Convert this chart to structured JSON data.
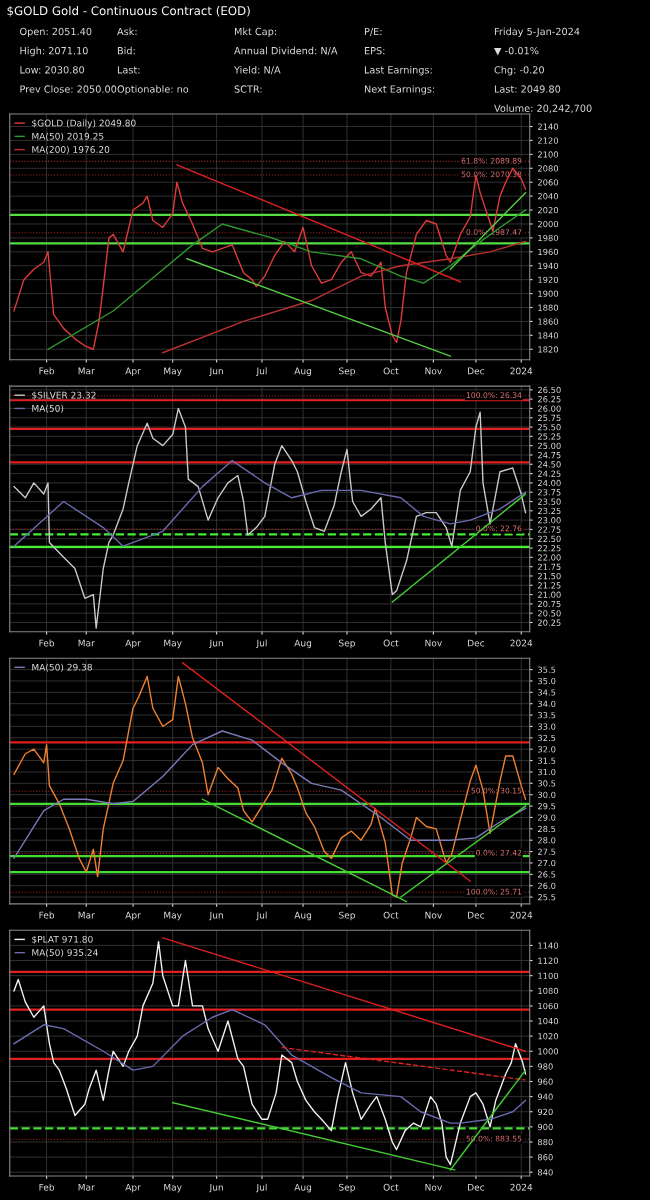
{
  "chart_data": [
    {
      "type": "line",
      "title": "$GOLD Gold - Continuous Contract (EOD)",
      "annotations": [
        "Open: 2051.40",
        "High: 2071.10",
        "Low: 2030.80",
        "Prev Close: 2050.00",
        "Ask:",
        "Bid:",
        "Last:",
        "Optionable: no",
        "Mkt Cap:",
        "Annual Dividend: N/A",
        "Yield: N/A",
        "SCTR:",
        "P/E:",
        "EPS:",
        "Last Earnings:",
        "Next Earnings:",
        "Friday 5-Jan-2024",
        "▼ -0.01%",
        "Chg: -0.20",
        "Last: 2049.80",
        "Volume: 20,242,700"
      ],
      "xlim": [
        "2023-01-06",
        "2024-01-08"
      ],
      "ylim": [
        1805,
        2158
      ],
      "yticks": [
        1820,
        1840,
        1860,
        1880,
        1900,
        1920,
        1940,
        1960,
        1980,
        2000,
        2020,
        2040,
        2060,
        2080,
        2100,
        2120,
        2140
      ],
      "xticks": [
        {
          "value": "2023-02-01",
          "label": "Feb"
        },
        {
          "value": "2023-03-01",
          "label": "Mar"
        },
        {
          "value": "2023-04-03",
          "label": "Apr"
        },
        {
          "value": "2023-05-01",
          "label": "May"
        },
        {
          "value": "2023-06-01",
          "label": "Jun"
        },
        {
          "value": "2023-07-03",
          "label": "Jul"
        },
        {
          "value": "2023-08-01",
          "label": "Aug"
        },
        {
          "value": "2023-09-01",
          "label": "Sep"
        },
        {
          "value": "2023-10-02",
          "label": "Oct"
        },
        {
          "value": "2023-11-01",
          "label": "Nov"
        },
        {
          "value": "2023-12-01",
          "label": "Dec"
        },
        {
          "value": "2024-01-02",
          "label": "2024"
        }
      ],
      "grid": true,
      "legend": "top left",
      "ref_lines": [
        {
          "axis": "y",
          "value": 2013,
          "color": "#55dd44"
        },
        {
          "axis": "y",
          "value": 1972,
          "color": "#55dd44"
        },
        {
          "axis": "y",
          "value": 2089.89,
          "label": "61.8%: 2089.89",
          "color": "#a02020",
          "line_style": "dotted"
        },
        {
          "axis": "y",
          "value": 2070.38,
          "label": "50.0%: 2070.38",
          "color": "#a02020",
          "line_style": "dotted"
        },
        {
          "axis": "y",
          "value": 1987.47,
          "label": "0.0%: 1987.47",
          "color": "#a02020",
          "line_style": "dotted"
        }
      ],
      "series": [
        {
          "name": "$GOLD (Daily) 2049.80",
          "color": "#e03a3a",
          "x": [
            "2023-01-09",
            "2023-01-16",
            "2023-01-23",
            "2023-01-30",
            "2023-02-02",
            "2023-02-06",
            "2023-02-13",
            "2023-02-21",
            "2023-02-28",
            "2023-03-06",
            "2023-03-10",
            "2023-03-13",
            "2023-03-17",
            "2023-03-20",
            "2023-03-27",
            "2023-04-03",
            "2023-04-10",
            "2023-04-13",
            "2023-04-17",
            "2023-04-24",
            "2023-05-01",
            "2023-05-04",
            "2023-05-08",
            "2023-05-15",
            "2023-05-22",
            "2023-05-29",
            "2023-06-05",
            "2023-06-12",
            "2023-06-20",
            "2023-06-26",
            "2023-06-29",
            "2023-07-05",
            "2023-07-12",
            "2023-07-19",
            "2023-07-26",
            "2023-08-01",
            "2023-08-07",
            "2023-08-14",
            "2023-08-21",
            "2023-08-28",
            "2023-09-04",
            "2023-09-11",
            "2023-09-18",
            "2023-09-25",
            "2023-09-28",
            "2023-10-03",
            "2023-10-06",
            "2023-10-09",
            "2023-10-13",
            "2023-10-20",
            "2023-10-27",
            "2023-11-03",
            "2023-11-10",
            "2023-11-13",
            "2023-11-20",
            "2023-11-27",
            "2023-12-01",
            "2023-12-04",
            "2023-12-08",
            "2023-12-13",
            "2023-12-18",
            "2023-12-22",
            "2023-12-27",
            "2024-01-02",
            "2024-01-05"
          ],
          "values": [
            1875,
            1920,
            1935,
            1945,
            1960,
            1870,
            1850,
            1835,
            1825,
            1820,
            1860,
            1910,
            1980,
            1985,
            1960,
            2020,
            2030,
            2040,
            2005,
            1995,
            2015,
            2060,
            2030,
            2000,
            1965,
            1960,
            1965,
            1970,
            1930,
            1920,
            1910,
            1925,
            1955,
            1975,
            1960,
            1995,
            1940,
            1915,
            1920,
            1945,
            1960,
            1930,
            1925,
            1945,
            1880,
            1840,
            1830,
            1860,
            1930,
            1985,
            2005,
            2000,
            1955,
            1945,
            1985,
            2010,
            2070,
            2045,
            2020,
            1990,
            2040,
            2060,
            2080,
            2065,
            2050
          ]
        },
        {
          "name": "MA(50) 2019.25",
          "color": "#2e9a2e",
          "x": [
            "2023-02-02",
            "2023-03-20",
            "2023-05-15",
            "2023-06-05",
            "2023-07-10",
            "2023-08-07",
            "2023-09-11",
            "2023-10-09",
            "2023-10-25",
            "2023-11-13",
            "2023-12-01",
            "2023-12-18",
            "2024-01-05"
          ],
          "values": [
            1820,
            1875,
            1970,
            2000,
            1980,
            1960,
            1950,
            1925,
            1915,
            1940,
            1970,
            1995,
            2020
          ]
        },
        {
          "name": "MA(200) 1976.20",
          "color": "#b83030",
          "x": [
            "2023-04-24",
            "2023-06-20",
            "2023-08-07",
            "2023-09-11",
            "2023-10-09",
            "2023-11-13",
            "2023-12-11",
            "2024-01-05"
          ],
          "values": [
            1815,
            1860,
            1890,
            1925,
            1940,
            1950,
            1960,
            1975
          ]
        },
        {
          "color": "#e02020",
          "x": [
            "2023-05-04",
            "2023-11-20"
          ],
          "values": [
            2085,
            1917
          ]
        },
        {
          "color": "#55cc44",
          "x": [
            "2023-05-11",
            "2023-11-13"
          ],
          "values": [
            1950,
            1810
          ]
        },
        {
          "color": "#55cc44",
          "x": [
            "2023-11-13",
            "2024-01-05"
          ],
          "values": [
            1935,
            2045
          ]
        }
      ]
    },
    {
      "type": "line",
      "xlim": [
        "2023-01-06",
        "2024-01-08"
      ],
      "ylim": [
        20.0,
        26.6
      ],
      "yticks": [
        {
          "value": 20.25,
          "label": "20.25"
        },
        {
          "value": 20.5,
          "label": "20.50"
        },
        {
          "value": 20.75,
          "label": "20.75"
        },
        {
          "value": 21.0,
          "label": "21.00"
        },
        {
          "value": 21.25,
          "label": "21.25"
        },
        {
          "value": 21.5,
          "label": "21.50"
        },
        {
          "value": 21.75,
          "label": "21.75"
        },
        {
          "value": 22.0,
          "label": "22.00"
        },
        {
          "value": 22.25,
          "label": "22.25"
        },
        {
          "value": 22.5,
          "label": "22.50"
        },
        {
          "value": 22.75,
          "label": "22.75"
        },
        {
          "value": 23.0,
          "label": "23.00"
        },
        {
          "value": 23.25,
          "label": "23.25"
        },
        {
          "value": 23.5,
          "label": "23.50"
        },
        {
          "value": 23.75,
          "label": "23.75"
        },
        {
          "value": 24.0,
          "label": "24.00"
        },
        {
          "value": 24.25,
          "label": "24.25"
        },
        {
          "value": 24.5,
          "label": "24.50"
        },
        {
          "value": 24.75,
          "label": "24.75"
        },
        {
          "value": 25.0,
          "label": "25.00"
        },
        {
          "value": 25.25,
          "label": "25.25"
        },
        {
          "value": 25.5,
          "label": "25.50"
        },
        {
          "value": 25.75,
          "label": "25.75"
        },
        {
          "value": 26.0,
          "label": "26.00"
        },
        {
          "value": 26.25,
          "label": "26.25"
        },
        {
          "value": 26.5,
          "label": "26.50"
        }
      ],
      "xticks": [
        {
          "value": "2023-02-01",
          "label": "Feb"
        },
        {
          "value": "2023-03-01",
          "label": "Mar"
        },
        {
          "value": "2023-04-03",
          "label": "Apr"
        },
        {
          "value": "2023-05-01",
          "label": "May"
        },
        {
          "value": "2023-06-01",
          "label": "Jun"
        },
        {
          "value": "2023-07-03",
          "label": "Jul"
        },
        {
          "value": "2023-08-01",
          "label": "Aug"
        },
        {
          "value": "2023-09-01",
          "label": "Sep"
        },
        {
          "value": "2023-10-02",
          "label": "Oct"
        },
        {
          "value": "2023-11-01",
          "label": "Nov"
        },
        {
          "value": "2023-12-01",
          "label": "Dec"
        },
        {
          "value": "2024-01-02",
          "label": "2024"
        }
      ],
      "grid": true,
      "legend": "top left",
      "ref_lines": [
        {
          "axis": "y",
          "value": 26.22,
          "color": "#e02020"
        },
        {
          "axis": "y",
          "value": 25.45,
          "color": "#e02020"
        },
        {
          "axis": "y",
          "value": 24.55,
          "color": "#e02020"
        },
        {
          "axis": "y",
          "value": 22.62,
          "color": "#44ee33",
          "line_style": "dashed"
        },
        {
          "axis": "y",
          "value": 22.28,
          "color": "#44ee33"
        },
        {
          "axis": "y",
          "value": 26.34,
          "label": "100.0%: 26.34",
          "color": "#a02020",
          "line_style": "dotted"
        },
        {
          "axis": "y",
          "value": 22.76,
          "label": "0.0%: 22.76",
          "color": "#a02020",
          "line_style": "dotted"
        }
      ],
      "series": [
        {
          "name": "$SILVER 23.32",
          "color": "#c8c8c8",
          "x": [
            "2023-01-09",
            "2023-01-17",
            "2023-01-23",
            "2023-01-30",
            "2023-02-02",
            "2023-02-03",
            "2023-02-13",
            "2023-02-21",
            "2023-02-28",
            "2023-03-06",
            "2023-03-08",
            "2023-03-13",
            "2023-03-17",
            "2023-03-20",
            "2023-03-27",
            "2023-03-31",
            "2023-04-06",
            "2023-04-13",
            "2023-04-17",
            "2023-04-24",
            "2023-05-01",
            "2023-05-05",
            "2023-05-10",
            "2023-05-12",
            "2023-05-19",
            "2023-05-26",
            "2023-06-02",
            "2023-06-09",
            "2023-06-16",
            "2023-06-20",
            "2023-06-23",
            "2023-06-29",
            "2023-07-05",
            "2023-07-12",
            "2023-07-17",
            "2023-07-24",
            "2023-07-28",
            "2023-08-03",
            "2023-08-09",
            "2023-08-16",
            "2023-08-23",
            "2023-08-28",
            "2023-09-01",
            "2023-09-05",
            "2023-09-11",
            "2023-09-18",
            "2023-09-25",
            "2023-09-28",
            "2023-10-03",
            "2023-10-06",
            "2023-10-13",
            "2023-10-20",
            "2023-10-27",
            "2023-11-03",
            "2023-11-10",
            "2023-11-14",
            "2023-11-20",
            "2023-11-27",
            "2023-12-01",
            "2023-12-04",
            "2023-12-06",
            "2023-12-11",
            "2023-12-18",
            "2023-12-27",
            "2024-01-02",
            "2024-01-05"
          ],
          "values": [
            23.9,
            23.6,
            24.0,
            23.7,
            24.0,
            22.4,
            22.0,
            21.7,
            20.9,
            21.0,
            20.1,
            21.7,
            22.4,
            22.6,
            23.3,
            24.0,
            25.0,
            25.6,
            25.2,
            25.0,
            25.3,
            26.0,
            25.5,
            24.1,
            23.9,
            23.0,
            23.6,
            24.0,
            24.2,
            23.5,
            22.6,
            22.8,
            23.1,
            24.5,
            25.0,
            24.6,
            24.3,
            23.5,
            22.8,
            22.7,
            23.4,
            24.3,
            24.9,
            23.5,
            23.1,
            23.3,
            23.6,
            22.4,
            21.0,
            21.1,
            21.9,
            23.1,
            23.2,
            23.2,
            22.8,
            22.3,
            23.8,
            24.3,
            25.5,
            25.9,
            24.0,
            22.9,
            24.3,
            24.4,
            23.7,
            23.2
          ]
        },
        {
          "name": "MA(50)",
          "color": "#6a6ab0",
          "x": [
            "2023-01-09",
            "2023-02-13",
            "2023-03-13",
            "2023-03-27",
            "2023-04-24",
            "2023-05-22",
            "2023-06-12",
            "2023-07-05",
            "2023-07-24",
            "2023-08-14",
            "2023-09-11",
            "2023-10-09",
            "2023-10-25",
            "2023-11-13",
            "2023-11-27",
            "2023-12-18",
            "2024-01-05"
          ],
          "values": [
            22.3,
            23.5,
            22.8,
            22.3,
            22.7,
            23.9,
            24.6,
            24.0,
            23.6,
            23.8,
            23.8,
            23.6,
            23.1,
            22.9,
            23.0,
            23.3,
            23.75
          ]
        },
        {
          "color": "#44cc33",
          "x": [
            "2023-10-03",
            "2024-01-05"
          ],
          "values": [
            20.8,
            23.7
          ]
        }
      ]
    },
    {
      "type": "line",
      "xlim": [
        "2023-01-06",
        "2024-01-08"
      ],
      "ylim": [
        25.2,
        36.0
      ],
      "yticks": [
        {
          "value": 25.5,
          "label": "25.5"
        },
        {
          "value": 26.0,
          "label": "26.0"
        },
        {
          "value": 26.5,
          "label": "26.5"
        },
        {
          "value": 27.0,
          "label": "27.0"
        },
        {
          "value": 27.5,
          "label": "27.5"
        },
        {
          "value": 28.0,
          "label": "28.0"
        },
        {
          "value": 28.5,
          "label": "28.5"
        },
        {
          "value": 29.0,
          "label": "29.0"
        },
        {
          "value": 29.5,
          "label": "29.5"
        },
        {
          "value": 30.0,
          "label": "30.0"
        },
        {
          "value": 30.5,
          "label": "30.5"
        },
        {
          "value": 31.0,
          "label": "31.0"
        },
        {
          "value": 31.5,
          "label": "31.5"
        },
        {
          "value": 32.0,
          "label": "32.0"
        },
        {
          "value": 32.5,
          "label": "32.5"
        },
        {
          "value": 33.0,
          "label": "33.0"
        },
        {
          "value": 33.5,
          "label": "33.5"
        },
        {
          "value": 34.0,
          "label": "34.0"
        },
        {
          "value": 34.5,
          "label": "34.5"
        },
        {
          "value": 35.0,
          "label": "35.0"
        },
        {
          "value": 35.5,
          "label": "35.5"
        }
      ],
      "xticks": [
        {
          "value": "2023-02-01",
          "label": "Feb"
        },
        {
          "value": "2023-03-01",
          "label": "Mar"
        },
        {
          "value": "2023-04-03",
          "label": "Apr"
        },
        {
          "value": "2023-05-01",
          "label": "May"
        },
        {
          "value": "2023-06-01",
          "label": "Jun"
        },
        {
          "value": "2023-07-03",
          "label": "Jul"
        },
        {
          "value": "2023-08-01",
          "label": "Aug"
        },
        {
          "value": "2023-09-01",
          "label": "Sep"
        },
        {
          "value": "2023-10-02",
          "label": "Oct"
        },
        {
          "value": "2023-11-01",
          "label": "Nov"
        },
        {
          "value": "2023-12-01",
          "label": "Dec"
        },
        {
          "value": "2024-01-02",
          "label": "2024"
        }
      ],
      "grid": true,
      "legend": "top left",
      "ref_lines": [
        {
          "axis": "y",
          "value": 32.3,
          "color": "#e02020"
        },
        {
          "axis": "y",
          "value": 29.6,
          "color": "#44dd33"
        },
        {
          "axis": "y",
          "value": 27.3,
          "color": "#44dd33"
        },
        {
          "axis": "y",
          "value": 26.6,
          "color": "#44dd33"
        },
        {
          "axis": "y",
          "value": 30.15,
          "label": "50.0%: 30.15",
          "color": "#a02020",
          "line_style": "dotted"
        },
        {
          "axis": "y",
          "value": 27.42,
          "label": "0.0%: 27.42",
          "color": "#a02020",
          "line_style": "dotted"
        },
        {
          "axis": "y",
          "value": 25.71,
          "label": "100.0%: 25.71",
          "color": "#a02020",
          "line_style": "dotted"
        }
      ],
      "series": [
        {
          "color": "#f08030",
          "x": [
            "2023-01-09",
            "2023-01-17",
            "2023-01-23",
            "2023-01-30",
            "2023-02-01",
            "2023-02-03",
            "2023-02-10",
            "2023-02-17",
            "2023-02-24",
            "2023-03-01",
            "2023-03-06",
            "2023-03-09",
            "2023-03-13",
            "2023-03-20",
            "2023-03-27",
            "2023-04-03",
            "2023-04-07",
            "2023-04-13",
            "2023-04-17",
            "2023-04-24",
            "2023-05-01",
            "2023-05-05",
            "2023-05-10",
            "2023-05-15",
            "2023-05-22",
            "2023-05-26",
            "2023-06-02",
            "2023-06-09",
            "2023-06-16",
            "2023-06-20",
            "2023-06-26",
            "2023-07-03",
            "2023-07-10",
            "2023-07-17",
            "2023-07-24",
            "2023-07-28",
            "2023-08-03",
            "2023-08-09",
            "2023-08-16",
            "2023-08-21",
            "2023-08-28",
            "2023-09-04",
            "2023-09-11",
            "2023-09-18",
            "2023-09-21",
            "2023-09-28",
            "2023-10-03",
            "2023-10-06",
            "2023-10-10",
            "2023-10-16",
            "2023-10-20",
            "2023-10-27",
            "2023-11-03",
            "2023-11-10",
            "2023-11-14",
            "2023-11-20",
            "2023-11-27",
            "2023-12-01",
            "2023-12-06",
            "2023-12-11",
            "2023-12-18",
            "2023-12-22",
            "2023-12-27",
            "2024-01-02",
            "2024-01-05"
          ],
          "values": [
            30.9,
            31.8,
            32.0,
            31.4,
            32.2,
            30.4,
            29.6,
            28.5,
            27.2,
            26.6,
            27.6,
            26.4,
            28.5,
            30.5,
            31.5,
            33.8,
            34.3,
            35.2,
            33.8,
            33.0,
            33.3,
            35.2,
            34.0,
            32.5,
            31.4,
            30.0,
            31.2,
            30.7,
            30.3,
            29.3,
            28.8,
            29.5,
            30.2,
            31.6,
            30.9,
            30.3,
            29.2,
            28.6,
            27.5,
            27.2,
            28.1,
            28.4,
            28.0,
            28.7,
            29.4,
            27.9,
            25.6,
            25.5,
            27.0,
            28.1,
            29.0,
            28.6,
            28.5,
            27.0,
            27.4,
            28.9,
            30.6,
            31.3,
            30.2,
            28.3,
            30.6,
            31.7,
            31.7,
            30.4,
            29.8
          ]
        },
        {
          "name": "MA(50) 29.38",
          "color": "#7a7ab8",
          "x": [
            "2023-01-09",
            "2023-01-30",
            "2023-02-13",
            "2023-03-01",
            "2023-03-20",
            "2023-04-03",
            "2023-04-24",
            "2023-05-15",
            "2023-06-05",
            "2023-06-26",
            "2023-07-17",
            "2023-08-07",
            "2023-08-28",
            "2023-09-25",
            "2023-10-16",
            "2023-11-13",
            "2023-12-01",
            "2023-12-18",
            "2024-01-05"
          ],
          "values": [
            27.2,
            29.3,
            29.8,
            29.8,
            29.6,
            29.7,
            30.8,
            32.2,
            32.8,
            32.4,
            31.4,
            30.5,
            30.2,
            29.0,
            28.0,
            28.0,
            28.1,
            28.8,
            29.4
          ]
        },
        {
          "color": "#e02020",
          "x": [
            "2023-05-08",
            "2023-11-27"
          ],
          "values": [
            35.8,
            26.2
          ]
        },
        {
          "color": "#44cc33",
          "x": [
            "2023-05-22",
            "2023-10-13"
          ],
          "values": [
            29.8,
            25.3
          ]
        },
        {
          "color": "#44cc33",
          "x": [
            "2023-10-09",
            "2024-01-05"
          ],
          "values": [
            25.5,
            29.5
          ]
        }
      ]
    },
    {
      "type": "line",
      "xlim": [
        "2023-01-06",
        "2024-01-08"
      ],
      "ylim": [
        835,
        1160
      ],
      "yticks": [
        840,
        860,
        880,
        900,
        920,
        940,
        960,
        980,
        1000,
        1020,
        1040,
        1060,
        1080,
        1100,
        1120,
        1140
      ],
      "xticks": [
        {
          "value": "2023-02-01",
          "label": "Feb"
        },
        {
          "value": "2023-03-01",
          "label": "Mar"
        },
        {
          "value": "2023-04-03",
          "label": "Apr"
        },
        {
          "value": "2023-05-01",
          "label": "May"
        },
        {
          "value": "2023-06-01",
          "label": "Jun"
        },
        {
          "value": "2023-07-03",
          "label": "Jul"
        },
        {
          "value": "2023-08-01",
          "label": "Aug"
        },
        {
          "value": "2023-09-01",
          "label": "Sep"
        },
        {
          "value": "2023-10-02",
          "label": "Oct"
        },
        {
          "value": "2023-11-01",
          "label": "Nov"
        },
        {
          "value": "2023-12-01",
          "label": "Dec"
        },
        {
          "value": "2024-01-02",
          "label": "2024"
        }
      ],
      "grid": true,
      "legend": "top left",
      "ref_lines": [
        {
          "axis": "y",
          "value": 1105,
          "color": "#e02020"
        },
        {
          "axis": "y",
          "value": 1055,
          "color": "#e02020"
        },
        {
          "axis": "y",
          "value": 990,
          "color": "#e02020"
        },
        {
          "axis": "y",
          "value": 898,
          "color": "#44dd33",
          "line_style": "dashed"
        },
        {
          "axis": "y",
          "value": 883.55,
          "label": "50.0%: 883.55",
          "color": "#a02020",
          "line_style": "dotted"
        }
      ],
      "series": [
        {
          "name": "$PLAT 971.80",
          "color": "#f0f0f0",
          "x": [
            "2023-01-09",
            "2023-01-12",
            "2023-01-17",
            "2023-01-23",
            "2023-01-30",
            "2023-02-03",
            "2023-02-06",
            "2023-02-10",
            "2023-02-15",
            "2023-02-21",
            "2023-02-28",
            "2023-03-03",
            "2023-03-08",
            "2023-03-13",
            "2023-03-17",
            "2023-03-20",
            "2023-03-27",
            "2023-03-31",
            "2023-04-06",
            "2023-04-10",
            "2023-04-17",
            "2023-04-21",
            "2023-04-24",
            "2023-05-01",
            "2023-05-05",
            "2023-05-10",
            "2023-05-15",
            "2023-05-22",
            "2023-05-26",
            "2023-06-02",
            "2023-06-09",
            "2023-06-16",
            "2023-06-20",
            "2023-06-26",
            "2023-07-03",
            "2023-07-07",
            "2023-07-13",
            "2023-07-17",
            "2023-07-24",
            "2023-07-28",
            "2023-08-03",
            "2023-08-09",
            "2023-08-14",
            "2023-08-21",
            "2023-08-25",
            "2023-08-31",
            "2023-09-05",
            "2023-09-11",
            "2023-09-18",
            "2023-09-22",
            "2023-09-28",
            "2023-10-03",
            "2023-10-06",
            "2023-10-12",
            "2023-10-18",
            "2023-10-23",
            "2023-10-30",
            "2023-11-03",
            "2023-11-07",
            "2023-11-10",
            "2023-11-13",
            "2023-11-20",
            "2023-11-27",
            "2023-12-01",
            "2023-12-06",
            "2023-12-11",
            "2023-12-15",
            "2023-12-22",
            "2023-12-26",
            "2023-12-29",
            "2024-01-03",
            "2024-01-05"
          ],
          "values": [
            1080,
            1095,
            1065,
            1045,
            1060,
            1010,
            985,
            975,
            950,
            915,
            930,
            950,
            975,
            935,
            975,
            1000,
            980,
            1000,
            1020,
            1060,
            1090,
            1145,
            1100,
            1060,
            1060,
            1120,
            1060,
            1060,
            1030,
            1000,
            1040,
            990,
            980,
            930,
            910,
            910,
            945,
            995,
            985,
            960,
            935,
            920,
            910,
            895,
            935,
            985,
            945,
            910,
            930,
            940,
            910,
            880,
            870,
            895,
            905,
            900,
            940,
            930,
            905,
            860,
            850,
            905,
            940,
            945,
            930,
            900,
            935,
            970,
            985,
            1010,
            985,
            970
          ]
        },
        {
          "name": "MA(50) 935.24",
          "color": "#6a6ab0",
          "x": [
            "2023-01-09",
            "2023-01-30",
            "2023-02-13",
            "2023-03-13",
            "2023-04-03",
            "2023-04-17",
            "2023-05-08",
            "2023-05-29",
            "2023-06-12",
            "2023-07-05",
            "2023-07-24",
            "2023-08-21",
            "2023-09-11",
            "2023-10-09",
            "2023-10-23",
            "2023-11-13",
            "2023-11-20",
            "2023-12-11",
            "2023-12-27",
            "2024-01-05"
          ],
          "values": [
            1010,
            1035,
            1030,
            1000,
            975,
            980,
            1020,
            1045,
            1055,
            1035,
            995,
            965,
            945,
            940,
            920,
            905,
            905,
            910,
            920,
            935
          ]
        },
        {
          "color": "#e02020",
          "x": [
            "2023-04-24",
            "2024-01-05"
          ],
          "values": [
            1150,
            1000
          ]
        },
        {
          "color": "#e02020",
          "line_style": "dashed",
          "x": [
            "2023-07-17",
            "2024-01-05"
          ],
          "values": [
            1005,
            962
          ]
        },
        {
          "color": "#44cc33",
          "x": [
            "2023-05-01",
            "2023-11-16"
          ],
          "values": [
            932,
            843
          ]
        },
        {
          "color": "#44cc33",
          "x": [
            "2023-11-13",
            "2024-01-05"
          ],
          "values": [
            843,
            975
          ]
        }
      ]
    }
  ]
}
